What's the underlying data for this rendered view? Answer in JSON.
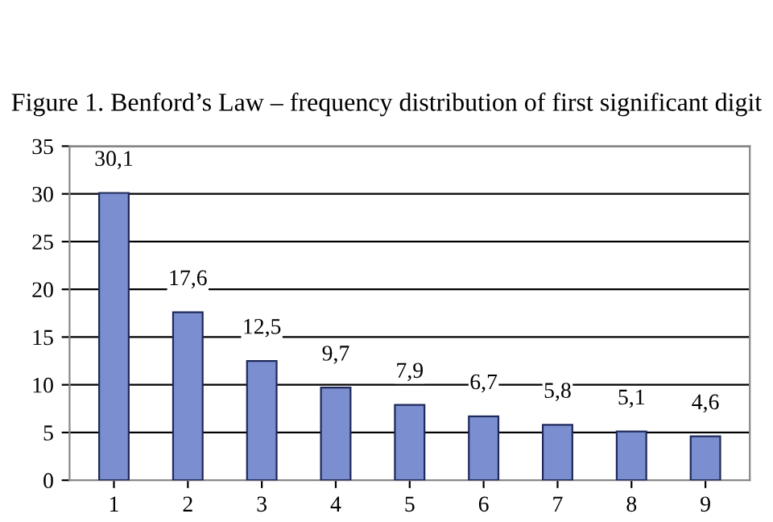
{
  "chart_data": {
    "type": "bar",
    "title": "Figure 1. Benford’s Law – frequency distribution of first significant digit",
    "categories": [
      "1",
      "2",
      "3",
      "4",
      "5",
      "6",
      "7",
      "8",
      "9"
    ],
    "values": [
      30.1,
      17.6,
      12.5,
      9.7,
      7.9,
      6.7,
      5.8,
      5.1,
      4.6
    ],
    "value_labels": [
      "30,1",
      "17,6",
      "12,5",
      "9,7",
      "7,9",
      "6,7",
      "5,8",
      "5,1",
      "4,6"
    ],
    "color": "#7b8fd0",
    "ylim": [
      0,
      35
    ],
    "yticks": [
      0,
      5,
      10,
      15,
      20,
      25,
      30,
      35
    ],
    "grid": "y"
  }
}
